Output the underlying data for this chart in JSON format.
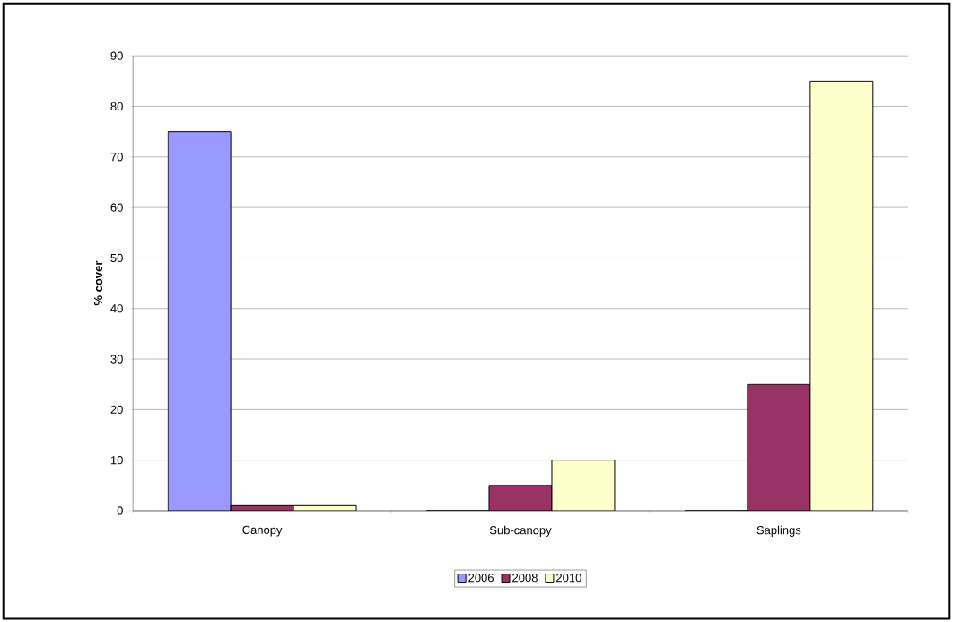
{
  "chart_data": {
    "type": "bar",
    "ylabel": "% cover",
    "categories": [
      "Canopy",
      "Sub-canopy",
      "Saplings"
    ],
    "series": [
      {
        "name": "2006",
        "color": "#9999ff",
        "values": [
          75,
          0,
          0
        ]
      },
      {
        "name": "2008",
        "color": "#993366",
        "values": [
          1,
          5,
          25
        ]
      },
      {
        "name": "2010",
        "color": "#ffffcc",
        "values": [
          1,
          10,
          85
        ]
      }
    ],
    "ylim": [
      0,
      90
    ],
    "yticks": [
      0,
      10,
      20,
      30,
      40,
      50,
      60,
      70,
      80,
      90
    ],
    "grid": "y",
    "legend": "bottom"
  }
}
